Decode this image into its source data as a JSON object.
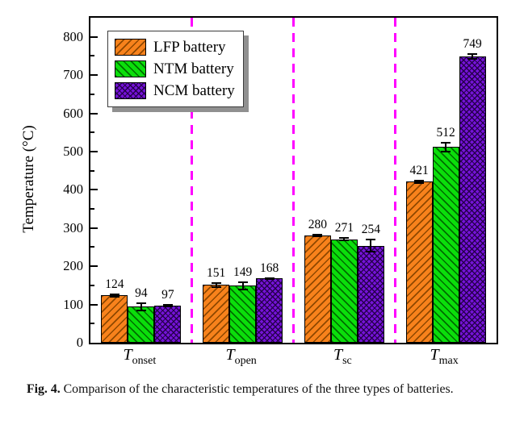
{
  "figure": {
    "caption_label": "Fig. 4.",
    "caption_text": "Comparison of the characteristic temperatures of the three types of batteries."
  },
  "chart_data": {
    "type": "bar",
    "title": "",
    "xlabel": "",
    "ylabel": "Temperature (°C)",
    "ylim": [
      0,
      850
    ],
    "y_ticks": [
      0,
      100,
      200,
      300,
      400,
      500,
      600,
      700,
      800
    ],
    "y_minor_step": 50,
    "grid": false,
    "legend_position": "top-left",
    "separator_color": "#FF00FF",
    "axis_color": "#000000",
    "categories": [
      {
        "symbol": "T",
        "subscript": "onset"
      },
      {
        "symbol": "T",
        "subscript": "open"
      },
      {
        "symbol": "T",
        "subscript": "sc"
      },
      {
        "symbol": "T",
        "subscript": "max"
      }
    ],
    "series": [
      {
        "name": "LFP battery",
        "color": "#F8821C",
        "hatch_color": "#8F4800",
        "pattern": "hatch-fwd",
        "values": [
          124,
          151,
          280,
          421
        ],
        "errors": [
          5,
          8,
          4,
          6
        ]
      },
      {
        "name": "NTM battery",
        "color": "#0BDE0B",
        "hatch_color": "#006C00",
        "pattern": "hatch-back",
        "values": [
          94,
          149,
          271,
          512
        ],
        "errors": [
          12,
          11,
          5,
          14
        ]
      },
      {
        "name": "NCM battery",
        "color": "#7513D8",
        "hatch_color": "#26004D",
        "pattern": "cross",
        "values": [
          97,
          168,
          254,
          749
        ],
        "errors": [
          5,
          3,
          18,
          9
        ]
      }
    ]
  }
}
